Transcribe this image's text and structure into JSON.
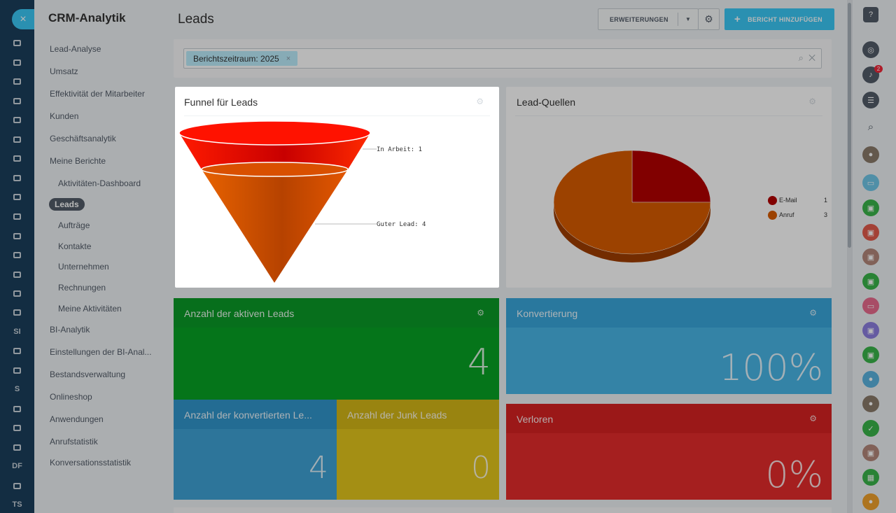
{
  "rail": {
    "close_label": "×",
    "texts": [
      "SI",
      "S",
      "DF",
      "TS"
    ]
  },
  "menu": {
    "title": "CRM-Analytik",
    "items": [
      {
        "label": "Lead-Analyse"
      },
      {
        "label": "Umsatz"
      },
      {
        "label": "Effektivität der Mitarbeiter"
      },
      {
        "label": "Kunden"
      },
      {
        "label": "Geschäftsanalytik"
      },
      {
        "label": "Meine Berichte"
      },
      {
        "label": "Aktivitäten-Dashboard"
      },
      {
        "label": "Leads"
      },
      {
        "label": "Aufträge"
      },
      {
        "label": "Kontakte"
      },
      {
        "label": "Unternehmen"
      },
      {
        "label": "Rechnungen"
      },
      {
        "label": "Meine Aktivitäten"
      },
      {
        "label": "BI-Analytik"
      },
      {
        "label": "Einstellungen der BI-Anal..."
      },
      {
        "label": "Bestandsverwaltung"
      },
      {
        "label": "Onlineshop"
      },
      {
        "label": "Anwendungen"
      },
      {
        "label": "Anrufstatistik"
      },
      {
        "label": "Konversationsstatistik"
      }
    ],
    "active": "Leads"
  },
  "header": {
    "title": "Leads",
    "extensions_label": "ERWEITERUNGEN",
    "add_label": "BERICHT HINZUFÜGEN"
  },
  "filter": {
    "chip_label": "Berichtszeitraum: 2025",
    "chip_remove": "×"
  },
  "funnel": {
    "title": "Funnel für Leads",
    "stages": [
      {
        "label": "In Arbeit: 1",
        "value": 1
      },
      {
        "label": "Guter Lead: 4",
        "value": 4
      }
    ],
    "colors": [
      "#ff1200",
      "#e05500"
    ]
  },
  "sources": {
    "title": "Lead-Quellen",
    "legend": [
      {
        "name": "E-Mail",
        "value": "1",
        "color": "#b30000"
      },
      {
        "name": "Anruf",
        "value": "3",
        "color": "#d95c00"
      }
    ]
  },
  "chart_data": {
    "type": "pie",
    "categories": [
      "E-Mail",
      "Anruf"
    ],
    "values": [
      1,
      3
    ],
    "title": "Lead-Quellen",
    "legend": "right"
  },
  "tiles": {
    "active_leads": {
      "title": "Anzahl der aktiven Leads",
      "value": "4",
      "color": "#08a325"
    },
    "conversion": {
      "title": "Konvertierung",
      "value": "100%",
      "color": "#49b6e6"
    },
    "converted": {
      "title": "Anzahl der konvertierten Le...",
      "value": "4",
      "color": "#3fa3d6"
    },
    "junk": {
      "title": "Anzahl der Junk Leads",
      "value": "0",
      "color": "#e3c61c"
    },
    "lost": {
      "title": "Verloren",
      "value": "0%",
      "color": "#e52b2b"
    }
  },
  "right_rail": {
    "help": "?",
    "notifications_badge": "2"
  }
}
